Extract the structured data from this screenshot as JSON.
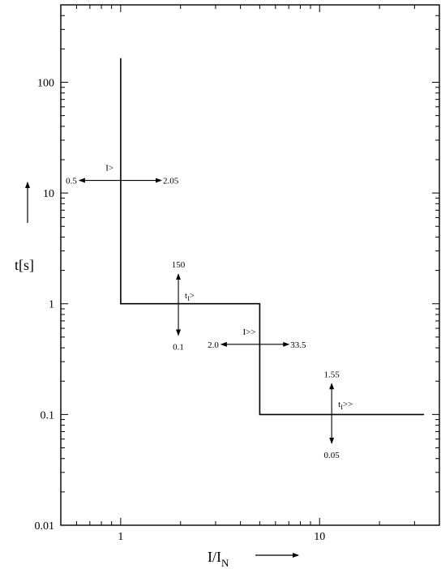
{
  "chart_data": {
    "type": "line",
    "title": "",
    "xlabel": "I/I",
    "xlabel_sub": "N",
    "ylabel": "t[s]",
    "x_scale": "log",
    "y_scale": "log",
    "xlim": [
      0.5,
      40
    ],
    "ylim": [
      0.01,
      500
    ],
    "grid": false,
    "x_ticks": [
      {
        "value": 1,
        "label": "1"
      },
      {
        "value": 10,
        "label": "10"
      }
    ],
    "y_ticks": [
      {
        "value": 0.01,
        "label": "0.01"
      },
      {
        "value": 0.1,
        "label": "0.1"
      },
      {
        "value": 1,
        "label": "1"
      },
      {
        "value": 10,
        "label": "10"
      },
      {
        "value": 100,
        "label": "100"
      }
    ],
    "series": [
      {
        "x": [
          1,
          1,
          5,
          5,
          33.5
        ],
        "y": [
          165,
          1,
          1,
          0.1,
          0.1
        ]
      }
    ],
    "annotations": [
      {
        "id": "i-gt-range",
        "kind": "horizontal-range",
        "label": "I>",
        "min_label": "0.5",
        "max_label": "2.05",
        "x_from": 0.62,
        "x_to": 1.6,
        "y": 13
      },
      {
        "id": "ti-gt-range",
        "kind": "vertical-range",
        "label": "t",
        "label_sub": "I",
        "label_suffix": ">",
        "min_label": "0.1",
        "max_label": "150",
        "x": 1.95,
        "y_from": 0.52,
        "y_to": 1.85
      },
      {
        "id": "i-gtgt-range",
        "kind": "horizontal-range",
        "label": "I>>",
        "min_label": "2.0",
        "max_label": "33.5",
        "x_from": 3.2,
        "x_to": 7.0,
        "y": 0.43
      },
      {
        "id": "ti-gtgt-range",
        "kind": "vertical-range",
        "label": "t",
        "label_sub": "I",
        "label_suffix": ">>",
        "min_label": "0.05",
        "max_label": "1.55",
        "x": 11.5,
        "y_from": 0.055,
        "y_to": 0.19
      }
    ]
  }
}
